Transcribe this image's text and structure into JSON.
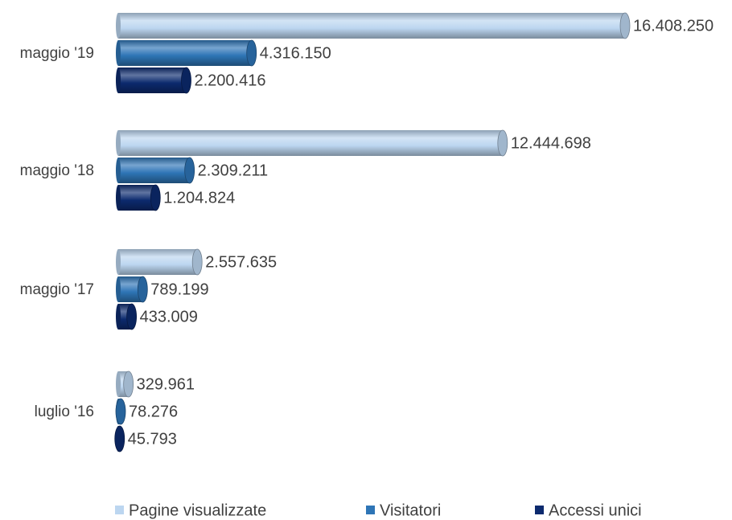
{
  "chart_data": {
    "type": "bar",
    "orientation": "horizontal",
    "legend": "bottom",
    "categories": [
      "maggio '19",
      "maggio '18",
      "maggio '17",
      "luglio '16"
    ],
    "series": [
      {
        "name": "Pagine visualizzate",
        "color": "#bcd6f0",
        "values": [
          16408250,
          12444698,
          2557635,
          329961
        ],
        "value_labels": [
          "16.408.250",
          "12.444.698",
          "2.557.635",
          "329.961"
        ]
      },
      {
        "name": "Visitatori",
        "color": "#2e75b6",
        "values": [
          4316150,
          2309211,
          789199,
          78276
        ],
        "value_labels": [
          "4.316.150",
          "2.309.211",
          "789.199",
          "78.276"
        ]
      },
      {
        "name": "Accessi unici",
        "color": "#0c2a6e",
        "values": [
          2200416,
          1204824,
          433009,
          45793
        ],
        "value_labels": [
          "2.200.416",
          "1.204.824",
          "433.009",
          "45.793"
        ]
      }
    ]
  }
}
